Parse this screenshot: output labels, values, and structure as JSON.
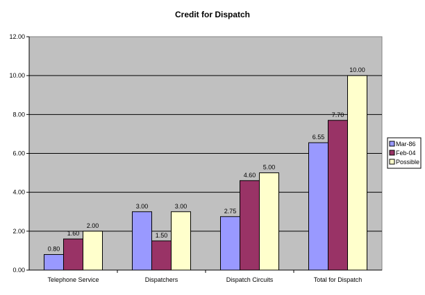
{
  "chart_data": {
    "type": "bar",
    "title": "Credit for Dispatch",
    "categories": [
      "Telephone Service",
      "Dispatchers",
      "Dispatch Circuits",
      "Total for Dispatch"
    ],
    "series": [
      {
        "name": "Mar-86",
        "values": [
          0.8,
          3.0,
          2.75,
          6.55
        ],
        "color": "#9999ff"
      },
      {
        "name": "Feb-04",
        "values": [
          1.6,
          1.5,
          4.6,
          7.7
        ],
        "color": "#993366"
      },
      {
        "name": "Possible",
        "values": [
          2.0,
          3.0,
          5.0,
          10.0
        ],
        "color": "#ffffcc"
      }
    ],
    "data_labels": [
      [
        "0.80",
        "3.00",
        "2.75",
        "6.55"
      ],
      [
        "1.60",
        "1.50",
        "4.60",
        "7.70"
      ],
      [
        "2.00",
        "3.00",
        "5.00",
        "10.00"
      ]
    ],
    "y_ticks": [
      "0.00",
      "2.00",
      "4.00",
      "6.00",
      "8.00",
      "10.00",
      "12.00"
    ],
    "ylim": [
      0,
      12
    ],
    "xlabel": "",
    "ylabel": "",
    "grid": true,
    "legend_position": "right",
    "plot_background": "#c0c0c0"
  }
}
